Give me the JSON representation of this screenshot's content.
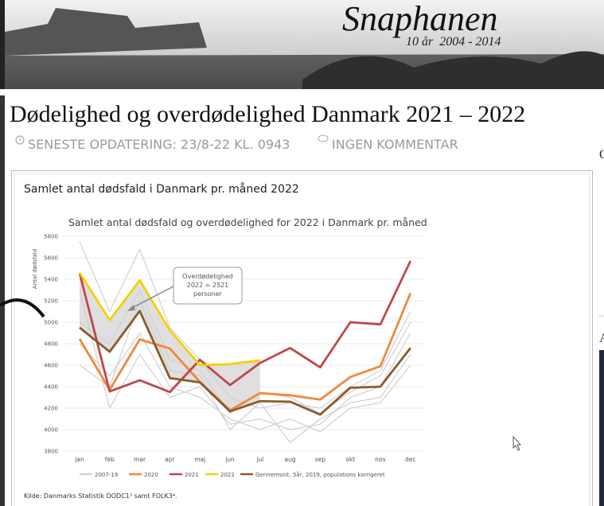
{
  "header": {
    "site_name": "Snaphanen",
    "tagline": "10 år  2004 - 2014"
  },
  "post": {
    "title": "Dødelighed og overdødelighed Danmark 2021 – 2022",
    "updated": "SENESTE OPDATERING: 23/8-22 KL. 0943",
    "comments": "INGEN KOMMENTAR",
    "figure_caption": "Samlet antal dødsfald i Danmark pr. måned 2022",
    "source": "Kilde: Danmarks Statistik DODC1³ samt FOLK3⁴."
  },
  "sidebar": {
    "labels": [
      "O",
      "A"
    ]
  },
  "chart_data": {
    "type": "line",
    "title": "Samlet antal dødsfald og overdødelighed for 2022 i Danmark pr. måned",
    "y_label": "Antal dødsfald",
    "categories": [
      "jan",
      "feb",
      "mar",
      "apr",
      "maj",
      "jun",
      "jul",
      "aug",
      "sep",
      "okt",
      "nov",
      "dec"
    ],
    "ylim": [
      3800,
      5800
    ],
    "yticks": [
      3800,
      4000,
      4200,
      4400,
      4600,
      4800,
      5000,
      5200,
      5400,
      5600,
      5800
    ],
    "grid": true,
    "series": [
      {
        "name": "2007-19",
        "color": "#d0d0d0",
        "lines": [
          [
            5750,
            5100,
            5680,
            4950,
            4650,
            4300,
            4200,
            4250,
            4200,
            4400,
            4550,
            5100
          ],
          [
            5300,
            4200,
            4700,
            4300,
            4400,
            4050,
            4100,
            4000,
            4050,
            4300,
            4400,
            4900
          ],
          [
            4600,
            4400,
            5200,
            4550,
            4500,
            4000,
            4250,
            3880,
            4100,
            4250,
            4300,
            4700
          ],
          [
            5000,
            4800,
            5300,
            4650,
            4550,
            4150,
            4350,
            4300,
            4150,
            4350,
            4500,
            5000
          ],
          [
            4800,
            4500,
            4900,
            4400,
            4300,
            4100,
            4000,
            4100,
            3980,
            4200,
            4250,
            4600
          ]
        ]
      },
      {
        "name": "2020",
        "color": "#f0883c",
        "values": [
          4845,
          4370,
          4840,
          4755,
          4445,
          4180,
          4340,
          4320,
          4280,
          4490,
          4590,
          5270
        ]
      },
      {
        "name": "2021",
        "color": "#c0474b",
        "values": [
          5460,
          4355,
          4460,
          4350,
          4650,
          4415,
          4620,
          4760,
          4580,
          5000,
          4980,
          5570
        ]
      },
      {
        "name": "2022",
        "color": "#f5d000",
        "values": [
          5460,
          5020,
          5390,
          4925,
          4600,
          4610,
          4645,
          null,
          null,
          null,
          null,
          null
        ]
      },
      {
        "name": "Gennemsnit, 5år, 2019, populations korrigeret",
        "color": "#8b5a2b",
        "values": [
          4950,
          4725,
          5105,
          4480,
          4440,
          4170,
          4265,
          4260,
          4140,
          4390,
          4400,
          4760
        ]
      }
    ],
    "annotation": {
      "lines": [
        "Overdødelighed",
        "2022 = 2521",
        "personer"
      ]
    }
  }
}
